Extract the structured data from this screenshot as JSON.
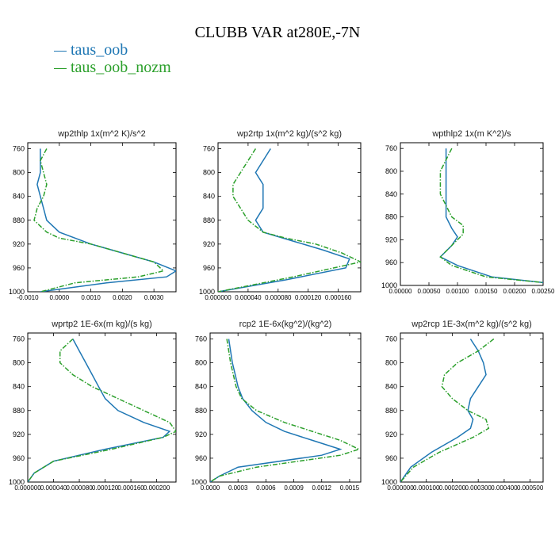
{
  "title": "CLUBB VAR at280E,-7N",
  "legend": [
    {
      "label": "taus_oob",
      "color": "#1f77b4"
    },
    {
      "label": "taus_oob_nozm",
      "color": "#2ca02c"
    }
  ],
  "chart_data": [
    {
      "type": "line",
      "title": "wp2thlp  1x(m^2 K)/s^2",
      "ylim": [
        1000,
        750
      ],
      "yticks": [
        760,
        800,
        840,
        880,
        920,
        960,
        1000
      ],
      "xlim": [
        -0.001,
        0.0037
      ],
      "xticks": [
        -0.001,
        0.0,
        0.001,
        0.002,
        0.003
      ],
      "xtick_labels": [
        "-0.0010",
        "0.0000",
        "0.0010",
        "0.0020",
        "0.0030"
      ],
      "series": [
        {
          "name": "taus_oob",
          "x": [
            -0.0006,
            -0.0006,
            -0.0006,
            -0.0007,
            -0.0006,
            -0.0005,
            -0.0004,
            0.0,
            0.001,
            0.002,
            0.003,
            0.0037,
            0.0034,
            0.0015,
            -0.0006
          ],
          "y": [
            760,
            780,
            800,
            820,
            840,
            860,
            880,
            900,
            920,
            935,
            950,
            965,
            975,
            985,
            1000
          ]
        },
        {
          "name": "taus_oob_nozm",
          "x": [
            -0.0004,
            -0.0006,
            -0.0005,
            -0.0004,
            -0.0005,
            -0.0007,
            -0.0008,
            -0.0004,
            0.0,
            0.001,
            0.002,
            0.003,
            0.0033,
            0.0025,
            0.0005,
            -0.0006
          ],
          "y": [
            760,
            780,
            800,
            820,
            840,
            860,
            880,
            900,
            910,
            920,
            935,
            950,
            965,
            975,
            985,
            1000
          ]
        }
      ]
    },
    {
      "type": "line",
      "title": "wp2rtp  1x(m^2 kg)/(s^2 kg)",
      "ylim": [
        1000,
        750
      ],
      "yticks": [
        760,
        800,
        840,
        880,
        920,
        960,
        1000
      ],
      "xlim": [
        0.0,
        0.00019
      ],
      "xticks": [
        0.0,
        4e-05,
        8e-05,
        0.00012,
        0.00016
      ],
      "xtick_labels": [
        "0.000000",
        "0.000040",
        "0.000080",
        "0.000120",
        "0.000160"
      ],
      "series": [
        {
          "name": "taus_oob",
          "x": [
            7e-05,
            6e-05,
            5e-05,
            6e-05,
            6e-05,
            6e-05,
            5e-05,
            6e-05,
            0.0001,
            0.00014,
            0.000175,
            0.00017,
            9e-05,
            0.0
          ],
          "y": [
            760,
            780,
            800,
            820,
            840,
            860,
            880,
            900,
            915,
            930,
            945,
            960,
            980,
            1000
          ]
        },
        {
          "name": "taus_oob_nozm",
          "x": [
            5e-05,
            4e-05,
            3e-05,
            2e-05,
            2e-05,
            3e-05,
            4e-05,
            6e-05,
            9e-05,
            0.00013,
            0.000165,
            0.00019,
            0.0001,
            0.0
          ],
          "y": [
            760,
            780,
            800,
            820,
            840,
            860,
            880,
            900,
            910,
            920,
            935,
            950,
            975,
            1000
          ]
        }
      ]
    },
    {
      "type": "line",
      "title": "wpthlp2  1x(m K^2)/s",
      "ylim": [
        1000,
        750
      ],
      "yticks": [
        760,
        800,
        840,
        880,
        920,
        960,
        1000
      ],
      "xlim": [
        0.0,
        0.0025
      ],
      "xticks": [
        0.0,
        0.0005,
        0.001,
        0.0015,
        0.002,
        0.0025
      ],
      "xtick_labels": [
        "0.00000",
        "0.00050",
        "0.00100",
        "0.00150",
        "0.00200",
        "0.00250"
      ],
      "series": [
        {
          "name": "taus_oob",
          "x": [
            0.0008,
            0.0008,
            0.0008,
            0.0008,
            0.0008,
            0.0008,
            0.0008,
            0.0009,
            0.001,
            0.0009,
            0.0007,
            0.001,
            0.0016,
            0.0025
          ],
          "y": [
            760,
            780,
            800,
            820,
            840,
            860,
            880,
            900,
            915,
            930,
            950,
            965,
            985,
            995
          ]
        },
        {
          "name": "taus_oob_nozm",
          "x": [
            0.0009,
            0.0008,
            0.0007,
            0.0007,
            0.0007,
            0.0008,
            0.0009,
            0.0011,
            0.0011,
            0.0009,
            0.0007,
            0.0009,
            0.0015,
            0.0025
          ],
          "y": [
            760,
            780,
            800,
            820,
            840,
            860,
            880,
            895,
            910,
            930,
            950,
            965,
            985,
            995
          ]
        }
      ]
    },
    {
      "type": "line",
      "title": "wprtp2  1E-6x(m kg)/(s kg)",
      "ylim": [
        1000,
        750
      ],
      "yticks": [
        760,
        800,
        840,
        880,
        920,
        960,
        1000
      ],
      "xlim": [
        0.0,
        0.00023
      ],
      "xticks": [
        0.0,
        4e-05,
        8e-05,
        0.00012,
        0.00016,
        0.0002
      ],
      "xtick_labels": [
        "0.000000",
        "0.000040",
        "0.000080",
        "0.000120",
        "0.000160",
        "0.000200"
      ],
      "series": [
        {
          "name": "taus_oob",
          "x": [
            7e-05,
            8e-05,
            9e-05,
            0.0001,
            0.00011,
            0.00012,
            0.00014,
            0.00018,
            0.00022,
            0.00021,
            0.00012,
            4e-05,
            1e-05,
            0.0
          ],
          "y": [
            760,
            780,
            800,
            820,
            840,
            860,
            880,
            900,
            915,
            925,
            945,
            965,
            985,
            1000
          ]
        },
        {
          "name": "taus_oob_nozm",
          "x": [
            7e-05,
            5e-05,
            5e-05,
            7e-05,
            0.0001,
            0.00014,
            0.00018,
            0.00022,
            0.00023,
            0.00021,
            0.00013,
            4e-05,
            1e-05,
            0.0
          ],
          "y": [
            760,
            780,
            800,
            820,
            840,
            860,
            880,
            900,
            915,
            925,
            945,
            965,
            985,
            1000
          ]
        }
      ]
    },
    {
      "type": "line",
      "title": "rcp2  1E-6x(kg^2)/(kg^2)",
      "ylim": [
        1000,
        750
      ],
      "yticks": [
        760,
        800,
        840,
        880,
        920,
        960,
        1000
      ],
      "xlim": [
        0.0,
        0.00162
      ],
      "xticks": [
        0.0,
        0.0003,
        0.0006,
        0.0009,
        0.0012,
        0.0015
      ],
      "xtick_labels": [
        "0.0000",
        "0.0003",
        "0.0006",
        "0.0009",
        "0.0012",
        "0.0015"
      ],
      "series": [
        {
          "name": "taus_oob",
          "x": [
            0.0002,
            0.00022,
            0.00024,
            0.00027,
            0.0003,
            0.00035,
            0.00045,
            0.0006,
            0.0008,
            0.0011,
            0.0014,
            0.0012,
            0.0003,
            0.0001,
            0.0
          ],
          "y": [
            760,
            780,
            800,
            820,
            840,
            860,
            880,
            900,
            915,
            930,
            945,
            955,
            975,
            990,
            1000
          ]
        },
        {
          "name": "taus_oob_nozm",
          "x": [
            0.00018,
            0.0002,
            0.00022,
            0.00025,
            0.00028,
            0.00034,
            0.0005,
            0.0008,
            0.0011,
            0.0014,
            0.0016,
            0.0014,
            0.0005,
            0.0001,
            0.0
          ],
          "y": [
            760,
            780,
            800,
            820,
            840,
            860,
            880,
            900,
            915,
            930,
            945,
            955,
            975,
            990,
            1000
          ]
        }
      ]
    },
    {
      "type": "line",
      "title": "wp2rcp  1E-3x(m^2 kg)/(s^2 kg)",
      "ylim": [
        1000,
        750
      ],
      "yticks": [
        760,
        800,
        840,
        880,
        920,
        960,
        1000
      ],
      "xlim": [
        0.0,
        0.00055
      ],
      "xticks": [
        0.0,
        0.0001,
        0.0002,
        0.0003,
        0.0004,
        0.0005
      ],
      "xtick_labels": [
        "0.000000",
        "0.000100",
        "0.000200",
        "0.000300",
        "0.000400",
        "0.000500"
      ],
      "series": [
        {
          "name": "taus_oob",
          "x": [
            0.00027,
            0.0003,
            0.00032,
            0.00033,
            0.0003,
            0.00027,
            0.00026,
            0.00028,
            0.00027,
            0.00022,
            0.00012,
            4e-05,
            0.0
          ],
          "y": [
            760,
            780,
            800,
            820,
            840,
            860,
            880,
            895,
            910,
            925,
            950,
            975,
            1000
          ]
        },
        {
          "name": "taus_oob_nozm",
          "x": [
            0.00036,
            0.0003,
            0.00022,
            0.00017,
            0.00016,
            0.0002,
            0.00026,
            0.00033,
            0.00034,
            0.00028,
            0.00015,
            5e-05,
            0.0
          ],
          "y": [
            760,
            780,
            800,
            820,
            840,
            860,
            880,
            895,
            910,
            925,
            950,
            975,
            1000
          ]
        }
      ]
    }
  ]
}
